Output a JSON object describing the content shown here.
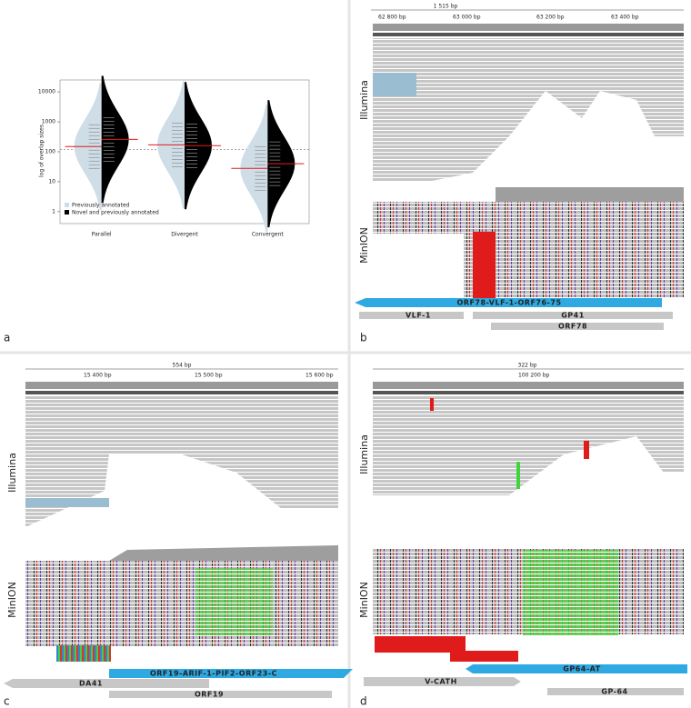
{
  "panel_labels": [
    "a",
    "b",
    "c",
    "d"
  ],
  "chart_data": {
    "type": "violin",
    "y_label": "log of overlap sizes",
    "categories": [
      "Parallel",
      "Divergent",
      "Convergent"
    ],
    "series": [
      {
        "name": "Previously annotated",
        "color": "#cfdde7",
        "values": [
          150,
          170,
          28
        ]
      },
      {
        "name": "Novel and previously annotated",
        "color": "#000000",
        "values": [
          260,
          160,
          40
        ]
      }
    ],
    "median_color": "#e41a1c",
    "ylim": [
      0.4,
      25000
    ],
    "yticks": [
      1,
      10,
      100,
      1000,
      10000
    ],
    "log_scale": true,
    "reference_line": 120,
    "legend": "bottom-left"
  },
  "panels": [
    {
      "span": "1 515 bp",
      "ruler": [
        "62 800 bp",
        "63 000 bp",
        "63 200 bp",
        "63 400 bp"
      ],
      "tracks": [
        "Illumina",
        "MinION"
      ],
      "genes": [
        "ORF78-VLF-1-ORF76-75",
        "VLF-1",
        "GP41",
        "ORF78"
      ]
    },
    {
      "span": "554 bp",
      "ruler": [
        "15 400 bp",
        "15 500 bp",
        "15 600 bp"
      ],
      "tracks": [
        "Illumina",
        "MinION"
      ],
      "genes": [
        "ORF19-ARIF-1-PIF2-ORF23-C",
        "DA41",
        "ORF19"
      ]
    },
    {
      "span": "322 bp",
      "ruler": [
        "100 200 bp"
      ],
      "tracks": [
        "Illumina",
        "MinION"
      ],
      "genes": [
        "GP64-AT",
        "V-CATH",
        "GP-64"
      ]
    }
  ]
}
